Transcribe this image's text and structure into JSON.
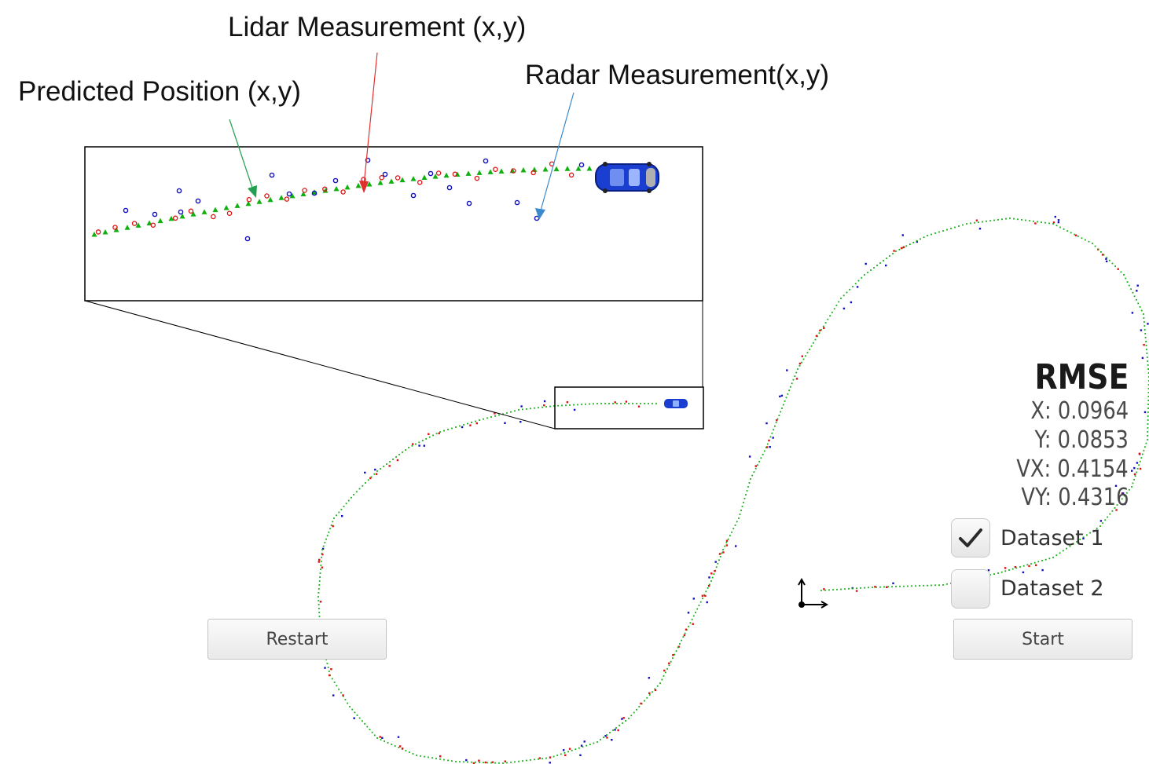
{
  "annotations": {
    "lidar": "Lidar Measurement (x,y)",
    "radar": "Radar Measurement(x,y)",
    "predicted": "Predicted Position (x,y)"
  },
  "rmse": {
    "title": "RMSE",
    "x": "X: 0.0964",
    "y": "Y: 0.0853",
    "vx": "VX: 0.4154",
    "vy": "VY: 0.4316"
  },
  "datasets": [
    {
      "label": "Dataset 1",
      "checked": true
    },
    {
      "label": "Dataset 2",
      "checked": false
    }
  ],
  "buttons": {
    "restart": "Restart",
    "start": "Start"
  },
  "colors": {
    "lidar": "#e01010",
    "radar": "#1010c0",
    "predicted": "#10b010",
    "car": "#1a3fd0",
    "lidar_arrow": "#e03030",
    "radar_arrow": "#3a8acc",
    "predicted_arrow": "#20a050"
  },
  "icons": {
    "check": "check-icon",
    "car": "car-icon",
    "origin": "axis-origin-icon"
  }
}
